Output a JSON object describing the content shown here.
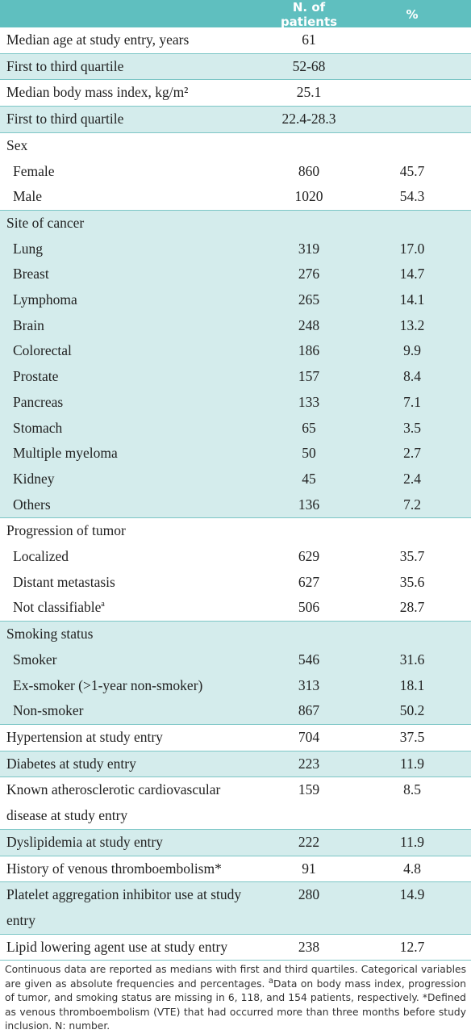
{
  "table": {
    "header": {
      "n": "N. of patients",
      "pct": "%"
    },
    "groups": [
      {
        "label": "Median age at study entry, years",
        "n": "61"
      },
      {
        "label": "First to third quartile",
        "n": "52-68"
      },
      {
        "label": "Median body mass index, kg/m²",
        "n": "25.1"
      },
      {
        "label": "First to third quartile",
        "n": "22.4-28.3"
      },
      {
        "label": "Sex",
        "items": [
          {
            "label": "Female",
            "n": "860",
            "pct": "45.7"
          },
          {
            "label": "Male",
            "n": "1020",
            "pct": "54.3"
          }
        ]
      },
      {
        "label": "Site of cancer",
        "items": [
          {
            "label": "Lung",
            "n": "319",
            "pct": "17.0"
          },
          {
            "label": "Breast",
            "n": "276",
            "pct": "14.7"
          },
          {
            "label": "Lymphoma",
            "n": "265",
            "pct": "14.1"
          },
          {
            "label": "Brain",
            "n": "248",
            "pct": "13.2"
          },
          {
            "label": "Colorectal",
            "n": "186",
            "pct": "9.9"
          },
          {
            "label": "Prostate",
            "n": "157",
            "pct": "8.4"
          },
          {
            "label": "Pancreas",
            "n": "133",
            "pct": "7.1"
          },
          {
            "label": "Stomach",
            "n": "65",
            "pct": "3.5"
          },
          {
            "label": "Multiple myeloma",
            "n": "50",
            "pct": "2.7"
          },
          {
            "label": "Kidney",
            "n": "45",
            "pct": "2.4"
          },
          {
            "label": "Others",
            "n": "136",
            "pct": "7.2"
          }
        ]
      },
      {
        "label": "Progression of tumor",
        "items": [
          {
            "label": "Localized",
            "n": "629",
            "pct": "35.7"
          },
          {
            "label": "Distant metastasis",
            "n": "627",
            "pct": "35.6"
          },
          {
            "label": "Not classifiable",
            "mark": "a",
            "n": "506",
            "pct": "28.7"
          }
        ]
      },
      {
        "label": "Smoking status",
        "items": [
          {
            "label": "Smoker",
            "n": "546",
            "pct": "31.6"
          },
          {
            "label": "Ex-smoker (>1-year non-smoker)",
            "n": "313",
            "pct": "18.1"
          },
          {
            "label": "Non-smoker",
            "n": "867",
            "pct": "50.2"
          }
        ]
      },
      {
        "label": "Hypertension at study entry",
        "n": "704",
        "pct": "37.5"
      },
      {
        "label": "Diabetes at study entry",
        "n": "223",
        "pct": "11.9"
      },
      {
        "label": "Known atherosclerotic cardiovascular disease at study entry",
        "n": "159",
        "pct": "8.5"
      },
      {
        "label": "Dyslipidemia at study entry",
        "n": "222",
        "pct": "11.9"
      },
      {
        "label": "History of venous thromboembolism*",
        "n": "91",
        "pct": "4.8"
      },
      {
        "label": "Platelet aggregation inhibitor use at study entry",
        "n": "280",
        "pct": "14.9"
      },
      {
        "label": "Lipid lowering agent use at study entry",
        "n": "238",
        "pct": "12.7"
      }
    ],
    "footnote": [
      "Continuous data are reported as medians with first and third quartiles. Categorical variables are given as absolute frequencies and percentages. ",
      "a",
      "Data on body mass index, progression of tumor, and smoking status are missing in 6, 118, and 154 patients, respectively. *Defined as venous thromboembolism (VTE) that had occurred more than three months before study inclusion. N: number."
    ]
  }
}
